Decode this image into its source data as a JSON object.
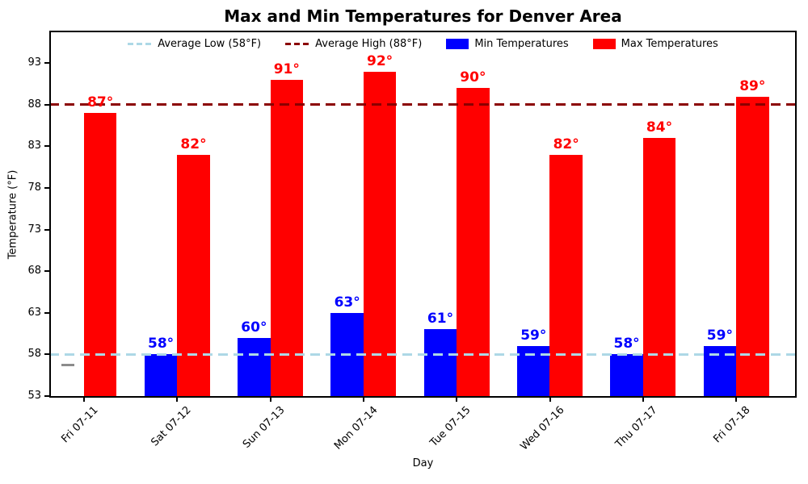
{
  "chart_data": {
    "type": "bar",
    "title": "Max and Min Temperatures for Denver Area",
    "xlabel": "Day",
    "ylabel": "Temperature (°F)",
    "categories": [
      "Fri 07-11",
      "Sat 07-12",
      "Sun 07-13",
      "Mon 07-14",
      "Tue 07-15",
      "Wed 07-16",
      "Thu 07-17",
      "Fri 07-18"
    ],
    "series": [
      {
        "name": "Min Temperatures",
        "color": "#0000ff",
        "values": [
          null,
          58,
          60,
          63,
          61,
          59,
          58,
          59
        ],
        "labels": [
          "",
          "58°",
          "60°",
          "63°",
          "61°",
          "59°",
          "58°",
          "59°"
        ]
      },
      {
        "name": "Max Temperatures",
        "color": "#ff0000",
        "values": [
          87,
          82,
          91,
          92,
          90,
          82,
          84,
          89
        ],
        "labels": [
          "87°",
          "82°",
          "91°",
          "92°",
          "90°",
          "82°",
          "84°",
          "89°"
        ]
      }
    ],
    "reference_lines": [
      {
        "name": "Average Low (58°F)",
        "value": 58,
        "color": "#add8e6",
        "style": "dashed"
      },
      {
        "name": "Average High (88°F)",
        "value": 88,
        "color": "#8b0000",
        "style": "dashed"
      }
    ],
    "missing_marker": {
      "series": "Min Temperatures",
      "category_index": 0,
      "approx_value": 56.7,
      "color": "#8c8c8c"
    },
    "yticks": [
      53,
      58,
      63,
      68,
      73,
      78,
      83,
      88,
      93
    ],
    "ylim": [
      52.8,
      96.9
    ],
    "legend_position": "top-center-inside",
    "grid": false,
    "bar_label_suffix": "°"
  }
}
